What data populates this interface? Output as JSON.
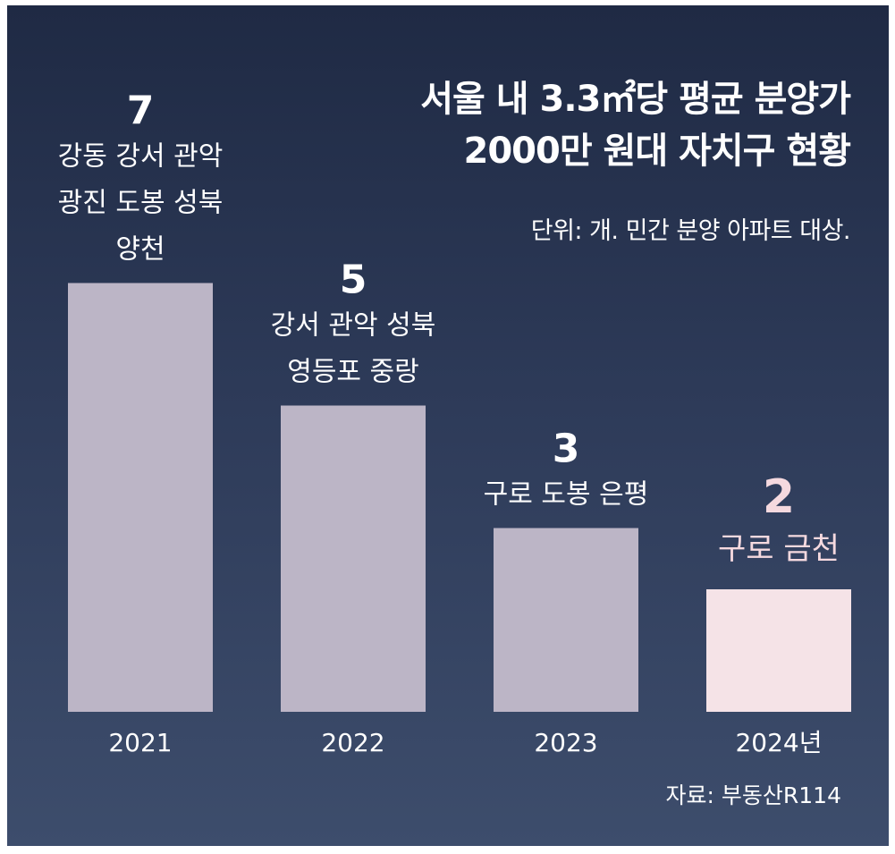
{
  "title_line1": "서울 내 3.3㎡당 평균 분양가",
  "title_line2": "2000만 원대 자치구 현황",
  "unit_note": "단위: 개. 민간 분양 아파트 대상.",
  "source": "자료: 부동산R114",
  "colors": {
    "bar": "#bcb5c6",
    "bar_highlight": "#f5e3e7",
    "background_top": "#1f2a44",
    "background_bottom": "#3d4d6c"
  },
  "chart_data": {
    "type": "bar",
    "categories": [
      "2021",
      "2022",
      "2023",
      "2024년"
    ],
    "values": [
      7,
      5,
      3,
      2
    ],
    "districts": [
      [
        "강동 강서 관악",
        "광진 도봉 성북",
        "양천"
      ],
      [
        "강서 관악 성북",
        "영등포 중랑"
      ],
      [
        "구로 도봉 은평"
      ],
      [
        "구로 금천"
      ]
    ],
    "highlight_index": 3,
    "ylim": [
      0,
      7
    ],
    "grid": false,
    "legend": "none"
  }
}
